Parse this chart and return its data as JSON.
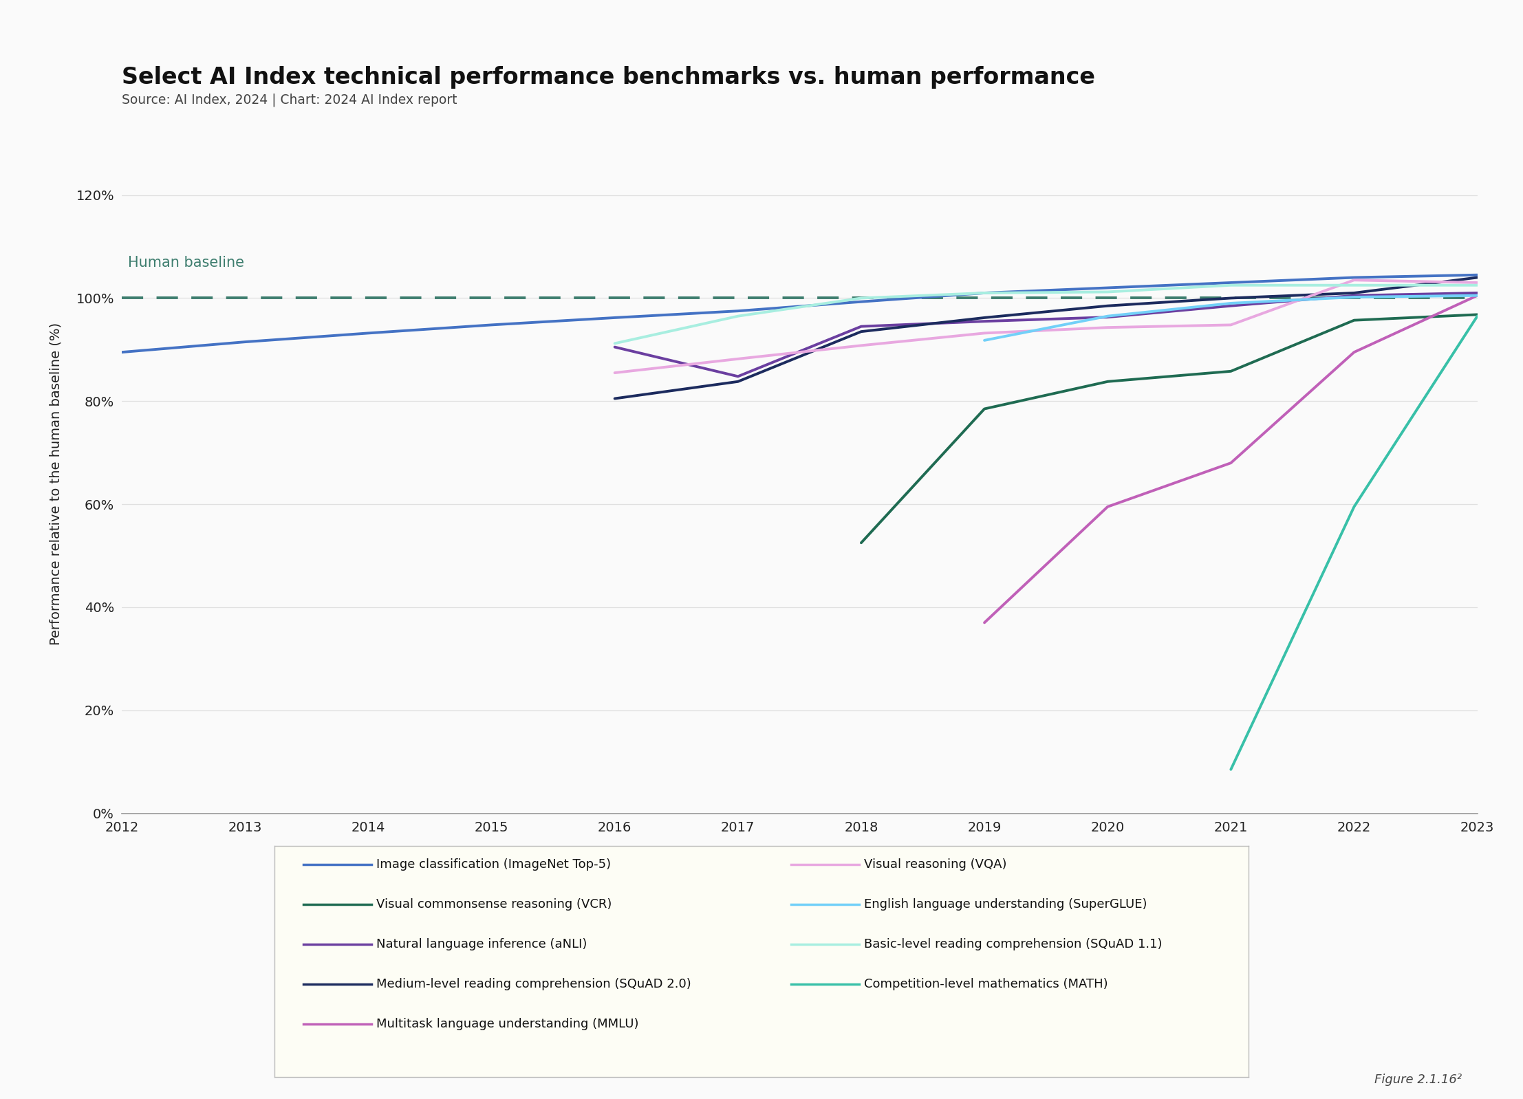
{
  "title": "Select AI Index technical performance benchmarks vs. human performance",
  "subtitle": "Source: AI Index, 2024 | Chart: 2024 AI Index report",
  "ylabel": "Performance relative to the human baseline (%)",
  "human_baseline_label": "Human baseline",
  "figure_label": "Figure 2.1.16²",
  "xlim": [
    2012,
    2023
  ],
  "ylim": [
    0,
    1.28
  ],
  "yticks": [
    0,
    0.2,
    0.4,
    0.6,
    0.8,
    1.0,
    1.2
  ],
  "ytick_labels": [
    "0%",
    "20%",
    "40%",
    "60%",
    "80%",
    "100%",
    "120%"
  ],
  "xticks": [
    2012,
    2013,
    2014,
    2015,
    2016,
    2017,
    2018,
    2019,
    2020,
    2021,
    2022,
    2023
  ],
  "series": [
    {
      "name": "Image classification (ImageNet Top-5)",
      "color": "#4472C4",
      "linewidth": 2.8,
      "data": [
        [
          2012,
          0.895
        ],
        [
          2013,
          0.915
        ],
        [
          2014,
          0.932
        ],
        [
          2015,
          0.948
        ],
        [
          2016,
          0.962
        ],
        [
          2017,
          0.975
        ],
        [
          2018,
          0.993
        ],
        [
          2019,
          1.01
        ],
        [
          2020,
          1.02
        ],
        [
          2021,
          1.03
        ],
        [
          2022,
          1.04
        ],
        [
          2023,
          1.045
        ]
      ]
    },
    {
      "name": "Visual commonsense reasoning (VCR)",
      "color": "#1F6B52",
      "linewidth": 2.8,
      "data": [
        [
          2018,
          0.525
        ],
        [
          2019,
          0.785
        ],
        [
          2020,
          0.838
        ],
        [
          2021,
          0.858
        ],
        [
          2022,
          0.957
        ],
        [
          2023,
          0.968
        ]
      ]
    },
    {
      "name": "Natural language inference (aNLI)",
      "color": "#6B3FA0",
      "linewidth": 2.8,
      "data": [
        [
          2016,
          0.905
        ],
        [
          2017,
          0.848
        ],
        [
          2018,
          0.945
        ],
        [
          2019,
          0.955
        ],
        [
          2020,
          0.963
        ],
        [
          2021,
          0.985
        ],
        [
          2022,
          1.005
        ],
        [
          2023,
          1.01
        ]
      ]
    },
    {
      "name": "Medium-level reading comprehension (SQuAD 2.0)",
      "color": "#1C2B5E",
      "linewidth": 2.8,
      "data": [
        [
          2016,
          0.805
        ],
        [
          2017,
          0.838
        ],
        [
          2018,
          0.935
        ],
        [
          2019,
          0.962
        ],
        [
          2020,
          0.985
        ],
        [
          2021,
          1.0
        ],
        [
          2022,
          1.01
        ],
        [
          2023,
          1.04
        ]
      ]
    },
    {
      "name": "Multitask language understanding (MMLU)",
      "color": "#C060B8",
      "linewidth": 2.8,
      "data": [
        [
          2019,
          0.37
        ],
        [
          2020,
          0.595
        ],
        [
          2021,
          0.68
        ],
        [
          2022,
          0.895
        ],
        [
          2023,
          1.005
        ]
      ]
    },
    {
      "name": "Visual reasoning (VQA)",
      "color": "#E8A8E0",
      "linewidth": 2.8,
      "data": [
        [
          2016,
          0.855
        ],
        [
          2017,
          0.882
        ],
        [
          2018,
          0.908
        ],
        [
          2019,
          0.932
        ],
        [
          2020,
          0.943
        ],
        [
          2021,
          0.948
        ],
        [
          2022,
          1.035
        ],
        [
          2023,
          1.03
        ]
      ]
    },
    {
      "name": "English language understanding (SuperGLUE)",
      "color": "#72D0F8",
      "linewidth": 2.8,
      "data": [
        [
          2019,
          0.918
        ],
        [
          2020,
          0.965
        ],
        [
          2021,
          0.99
        ],
        [
          2022,
          1.002
        ],
        [
          2023,
          1.005
        ]
      ]
    },
    {
      "name": "Basic-level reading comprehension (SQuAD 1.1)",
      "color": "#A8EEE0",
      "linewidth": 2.8,
      "data": [
        [
          2016,
          0.912
        ],
        [
          2017,
          0.965
        ],
        [
          2018,
          1.0
        ],
        [
          2019,
          1.01
        ],
        [
          2020,
          1.012
        ],
        [
          2021,
          1.025
        ],
        [
          2022,
          1.025
        ],
        [
          2023,
          1.025
        ]
      ]
    },
    {
      "name": "Competition-level mathematics (MATH)",
      "color": "#38C0A8",
      "linewidth": 2.8,
      "data": [
        [
          2021,
          0.085
        ],
        [
          2022,
          0.595
        ],
        [
          2023,
          0.965
        ]
      ]
    }
  ],
  "background_color": "#FAFAFA",
  "plot_bg_color": "#FAFAFA",
  "grid_color": "#E0E0E0",
  "human_baseline_color": "#3D7D6E",
  "human_baseline_level": 1.0,
  "legend_items_col1": [
    [
      "Image classification (ImageNet Top-5)",
      "#4472C4"
    ],
    [
      "Visual commonsense reasoning (VCR)",
      "#1F6B52"
    ],
    [
      "Natural language inference (aNLI)",
      "#6B3FA0"
    ],
    [
      "Medium-level reading comprehension (SQuAD 2.0)",
      "#1C2B5E"
    ],
    [
      "Multitask language understanding (MMLU)",
      "#C060B8"
    ]
  ],
  "legend_items_col2": [
    [
      "Visual reasoning (VQA)",
      "#E8A8E0"
    ],
    [
      "English language understanding (SuperGLUE)",
      "#72D0F8"
    ],
    [
      "Basic-level reading comprehension (SQuAD 1.1)",
      "#A8EEE0"
    ],
    [
      "Competition-level mathematics (MATH)",
      "#38C0A8"
    ]
  ]
}
